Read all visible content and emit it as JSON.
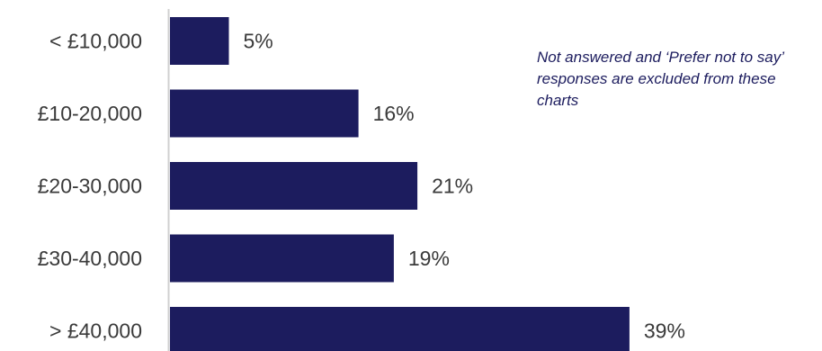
{
  "chart_data": {
    "type": "bar",
    "orientation": "horizontal",
    "categories": [
      "< £10,000",
      "£10-20,000",
      "£20-30,000",
      "£30-40,000",
      "> £40,000"
    ],
    "values": [
      5,
      16,
      21,
      19,
      39
    ],
    "value_labels": [
      "5%",
      "16%",
      "21%",
      "19%",
      "39%"
    ],
    "unit": "%",
    "xlim": [
      0,
      40
    ],
    "grid": false,
    "legend": "none",
    "bar_color": "#1c1c5e",
    "annotation": "Not answered and ‘Prefer not to say’ responses are excluded from these charts"
  }
}
